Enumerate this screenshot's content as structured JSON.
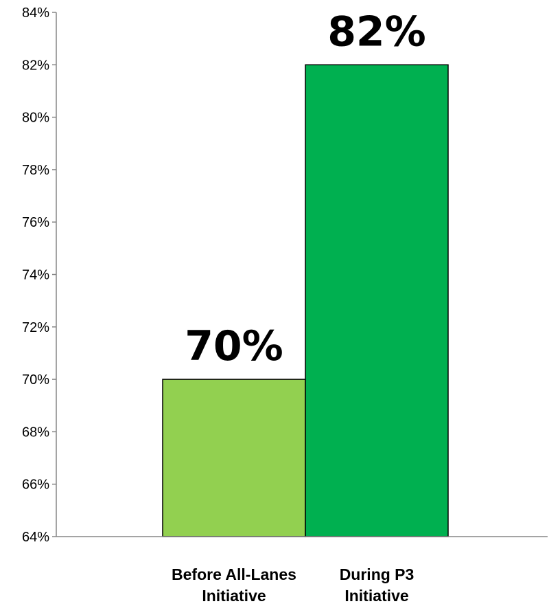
{
  "chart_data": {
    "type": "bar",
    "title": "",
    "xlabel": "",
    "ylabel": "",
    "categories": [
      [
        "Before All-Lanes",
        "Initiative"
      ],
      [
        "During P3",
        "Initiative"
      ]
    ],
    "values": [
      70,
      82
    ],
    "data_labels": [
      "70%",
      "82%"
    ],
    "bar_colors": [
      "#92d050",
      "#00b050"
    ],
    "ylim": [
      64,
      84
    ],
    "ytick_step": 2,
    "ytick_labels": [
      "64%",
      "66%",
      "68%",
      "70%",
      "72%",
      "74%",
      "76%",
      "78%",
      "80%",
      "82%",
      "84%"
    ],
    "grid": false,
    "legend": "none"
  }
}
